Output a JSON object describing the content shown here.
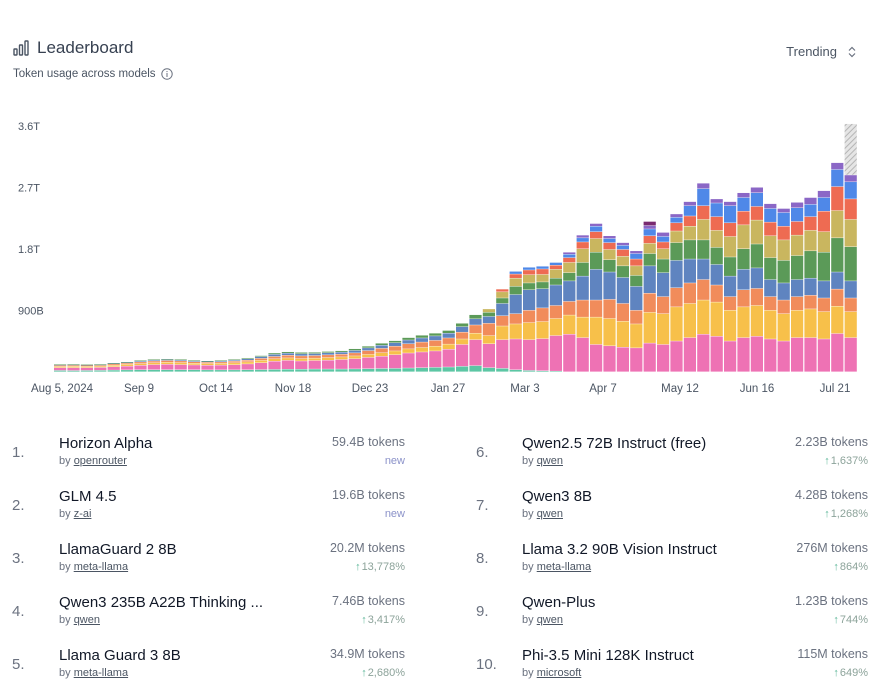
{
  "header": {
    "title": "Leaderboard",
    "subtitle": "Token usage across models",
    "dropdown_label": "Trending"
  },
  "colors": {
    "series": [
      "#5cc6a4",
      "#ee72b4",
      "#f7c04a",
      "#f18c5b",
      "#5f84c0",
      "#5b9a58",
      "#c9b65f",
      "#ee6b52",
      "#4f88e8",
      "#8b67c6",
      "#7a2a70",
      "#b8b8b8"
    ]
  },
  "chart_data": {
    "type": "bar",
    "stacked": true,
    "x_tick_labels": [
      "Aug 5, 2024",
      "Sep 9",
      "Oct 14",
      "Nov 18",
      "Dec 23",
      "Jan 27",
      "Mar 3",
      "Apr 7",
      "May 12",
      "Jun 16",
      "Jul 21"
    ],
    "y_tick_labels": [
      "900B",
      "1.8T",
      "2.7T",
      "3.6T"
    ],
    "y_ticks": [
      900,
      1800,
      2700,
      3600
    ],
    "ylim": [
      0,
      3600
    ],
    "unit": "B tokens",
    "grid": false,
    "legend": "none",
    "note": "weekly totals; last bar partially projected (hatched)",
    "weeks": [
      [
        20,
        40,
        20,
        15,
        10,
        5
      ],
      [
        18,
        42,
        22,
        15,
        10,
        5
      ],
      [
        20,
        40,
        20,
        15,
        8,
        5
      ],
      [
        22,
        42,
        20,
        15,
        8,
        5
      ],
      [
        25,
        48,
        22,
        20,
        10,
        5
      ],
      [
        28,
        55,
        25,
        20,
        12,
        5
      ],
      [
        30,
        65,
        25,
        25,
        15,
        8
      ],
      [
        30,
        75,
        28,
        25,
        15,
        10
      ],
      [
        30,
        80,
        30,
        25,
        15,
        10
      ],
      [
        30,
        75,
        30,
        25,
        15,
        10
      ],
      [
        30,
        70,
        25,
        22,
        15,
        10
      ],
      [
        28,
        68,
        25,
        20,
        12,
        8
      ],
      [
        28,
        70,
        25,
        22,
        15,
        10
      ],
      [
        28,
        75,
        28,
        25,
        15,
        12
      ],
      [
        30,
        85,
        30,
        25,
        20,
        15
      ],
      [
        32,
        100,
        35,
        30,
        25,
        15
      ],
      [
        35,
        120,
        35,
        35,
        30,
        20
      ],
      [
        38,
        130,
        35,
        40,
        30,
        20
      ],
      [
        38,
        120,
        35,
        40,
        30,
        22
      ],
      [
        40,
        125,
        35,
        38,
        28,
        20
      ],
      [
        40,
        130,
        38,
        40,
        30,
        20
      ],
      [
        40,
        140,
        38,
        40,
        30,
        20
      ],
      [
        42,
        150,
        40,
        45,
        35,
        25
      ],
      [
        45,
        165,
        45,
        55,
        40,
        25
      ],
      [
        48,
        180,
        50,
        65,
        45,
        30
      ],
      [
        50,
        200,
        55,
        70,
        50,
        30
      ],
      [
        55,
        220,
        60,
        75,
        55,
        35
      ],
      [
        60,
        230,
        65,
        80,
        60,
        40
      ],
      [
        65,
        240,
        70,
        85,
        65,
        40
      ],
      [
        70,
        260,
        75,
        90,
        70,
        40
      ],
      [
        80,
        320,
        80,
        100,
        80,
        50
      ],
      [
        90,
        380,
        95,
        120,
        90,
        60
      ],
      [
        60,
        350,
        120,
        180,
        100,
        60,
        50
      ],
      [
        50,
        420,
        200,
        150,
        180,
        80,
        90,
        40
      ],
      [
        30,
        450,
        220,
        150,
        280,
        120,
        120,
        60,
        40
      ],
      [
        20,
        450,
        250,
        180,
        300,
        100,
        120,
        70,
        40
      ],
      [
        15,
        470,
        250,
        200,
        280,
        100,
        110,
        80,
        40
      ],
      [
        10,
        520,
        250,
        190,
        300,
        100,
        130,
        60,
        40
      ],
      [
        0,
        550,
        280,
        200,
        300,
        120,
        150,
        70,
        50,
        30
      ],
      [
        0,
        500,
        300,
        250,
        350,
        200,
        200,
        100,
        60,
        40
      ],
      [
        0,
        400,
        400,
        250,
        450,
        250,
        200,
        100,
        80,
        40
      ],
      [
        0,
        380,
        400,
        280,
        400,
        180,
        150,
        100,
        60,
        40
      ],
      [
        0,
        360,
        380,
        260,
        380,
        170,
        140,
        100,
        60,
        40
      ],
      [
        0,
        350,
        350,
        200,
        350,
        160,
        140,
        100,
        80,
        40
      ],
      [
        0,
        420,
        450,
        280,
        400,
        180,
        150,
        110,
        100,
        50,
        60
      ],
      [
        0,
        400,
        450,
        250,
        350,
        200,
        150,
        100,
        80,
        60
      ],
      [
        0,
        450,
        500,
        280,
        400,
        260,
        170,
        120,
        80,
        50
      ],
      [
        0,
        500,
        500,
        300,
        350,
        280,
        200,
        150,
        150,
        60
      ],
      [
        0,
        550,
        500,
        300,
        300,
        280,
        300,
        200,
        250,
        80
      ],
      [
        0,
        520,
        500,
        250,
        300,
        250,
        250,
        200,
        200,
        60
      ],
      [
        0,
        450,
        450,
        200,
        300,
        280,
        300,
        200,
        250,
        60
      ],
      [
        0,
        500,
        450,
        250,
        300,
        300,
        350,
        200,
        200,
        70
      ],
      [
        0,
        520,
        450,
        250,
        300,
        350,
        350,
        200,
        200,
        80
      ],
      [
        0,
        480,
        420,
        200,
        250,
        320,
        320,
        200,
        200,
        70
      ],
      [
        0,
        450,
        400,
        200,
        250,
        330,
        300,
        200,
        200,
        60
      ],
      [
        0,
        500,
        400,
        200,
        250,
        350,
        300,
        200,
        200,
        80
      ],
      [
        0,
        500,
        420,
        200,
        250,
        400,
        300,
        200,
        180,
        100
      ],
      [
        0,
        480,
        400,
        200,
        250,
        420,
        300,
        300,
        200,
        100
      ],
      [
        0,
        560,
        400,
        250,
        250,
        500,
        400,
        350,
        250,
        100
      ],
      [
        0,
        500,
        380,
        200,
        250,
        500,
        400,
        300,
        250,
        100,
        0,
        750
      ]
    ]
  },
  "models": [
    {
      "rank": "1.",
      "name": "Horizon Alpha",
      "author": "openrouter",
      "tokens": "59.4B tokens",
      "change": "new",
      "kind": "new"
    },
    {
      "rank": "2.",
      "name": "GLM 4.5",
      "author": "z-ai",
      "tokens": "19.6B tokens",
      "change": "new",
      "kind": "new"
    },
    {
      "rank": "3.",
      "name": "LlamaGuard 2 8B",
      "author": "meta-llama",
      "tokens": "20.2M tokens",
      "change": "13,778%",
      "kind": "up"
    },
    {
      "rank": "4.",
      "name": "Qwen3 235B A22B Thinking ...",
      "author": "qwen",
      "tokens": "7.46B tokens",
      "change": "3,417%",
      "kind": "up"
    },
    {
      "rank": "5.",
      "name": "Llama Guard 3 8B",
      "author": "meta-llama",
      "tokens": "34.9M tokens",
      "change": "2,680%",
      "kind": "up"
    },
    {
      "rank": "6.",
      "name": "Qwen2.5 72B Instruct (free)",
      "author": "qwen",
      "tokens": "2.23B tokens",
      "change": "1,637%",
      "kind": "up"
    },
    {
      "rank": "7.",
      "name": "Qwen3 8B",
      "author": "qwen",
      "tokens": "4.28B tokens",
      "change": "1,268%",
      "kind": "up"
    },
    {
      "rank": "8.",
      "name": "Llama 3.2 90B Vision Instruct",
      "author": "meta-llama",
      "tokens": "276M tokens",
      "change": "864%",
      "kind": "up"
    },
    {
      "rank": "9.",
      "name": "Qwen-Plus",
      "author": "qwen",
      "tokens": "1.23B tokens",
      "change": "744%",
      "kind": "up"
    },
    {
      "rank": "10.",
      "name": "Phi-3.5 Mini 128K Instruct",
      "author": "microsoft",
      "tokens": "115M tokens",
      "change": "649%",
      "kind": "up"
    }
  ],
  "by_label": "by",
  "up_arrow": "↑"
}
